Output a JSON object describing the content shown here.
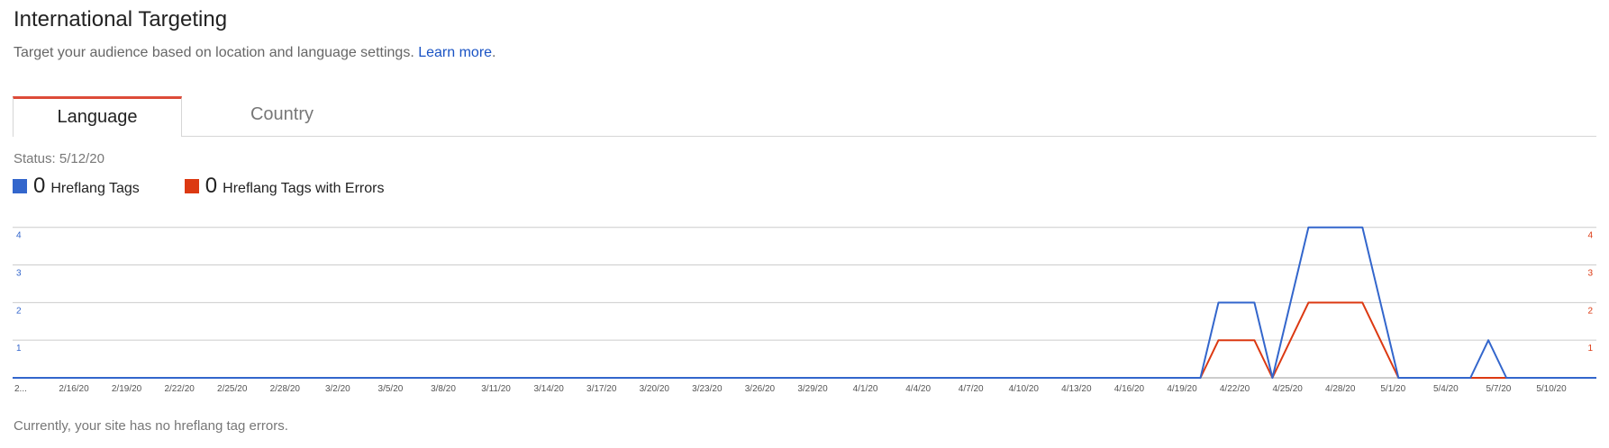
{
  "page": {
    "title": "International Targeting",
    "subtitle": "Target your audience based on location and language settings.",
    "learn_more": "Learn more",
    "learn_more_suffix": "."
  },
  "tabs": [
    {
      "label": "Language",
      "selected": true
    },
    {
      "label": "Country",
      "selected": false
    }
  ],
  "status": "Status: 5/12/20",
  "legend": [
    {
      "count": "0",
      "label": "Hreflang Tags",
      "color": "#3366cc"
    },
    {
      "count": "0",
      "label": "Hreflang Tags with Errors",
      "color": "#dc3912"
    }
  ],
  "footer_note": "Currently, your site has no hreflang tag errors.",
  "chart_data": {
    "type": "line",
    "title": "",
    "xlabel": "",
    "ylabel": "",
    "ylim": [
      0,
      4.4
    ],
    "y_ticks": [
      1,
      2,
      3,
      4
    ],
    "grid": true,
    "x_tick_labels": [
      "2...",
      "2/16/20",
      "2/19/20",
      "2/22/20",
      "2/25/20",
      "2/28/20",
      "3/2/20",
      "3/5/20",
      "3/8/20",
      "3/11/20",
      "3/14/20",
      "3/17/20",
      "3/20/20",
      "3/23/20",
      "3/26/20",
      "3/29/20",
      "4/1/20",
      "4/4/20",
      "4/7/20",
      "4/10/20",
      "4/13/20",
      "4/16/20",
      "4/19/20",
      "4/22/20",
      "4/25/20",
      "4/28/20",
      "5/1/20",
      "5/4/20",
      "5/7/20",
      "5/10/20"
    ],
    "x_first_date": "2020-02-14",
    "x_last_date": "2020-05-12",
    "series": [
      {
        "name": "Hreflang Tags",
        "color": "#3366cc",
        "axis": "left",
        "points": [
          {
            "x": "2020-02-14",
            "y": 0
          },
          {
            "x": "2020-04-20",
            "y": 0
          },
          {
            "x": "2020-04-21",
            "y": 2
          },
          {
            "x": "2020-04-23",
            "y": 2
          },
          {
            "x": "2020-04-24",
            "y": 0
          },
          {
            "x": "2020-04-26",
            "y": 4
          },
          {
            "x": "2020-04-29",
            "y": 4
          },
          {
            "x": "2020-05-01",
            "y": 0
          },
          {
            "x": "2020-05-05",
            "y": 0
          },
          {
            "x": "2020-05-06",
            "y": 1
          },
          {
            "x": "2020-05-07",
            "y": 0
          },
          {
            "x": "2020-05-12",
            "y": 0
          }
        ]
      },
      {
        "name": "Hreflang Tags with Errors",
        "color": "#dc3912",
        "axis": "right",
        "points": [
          {
            "x": "2020-02-14",
            "y": 0
          },
          {
            "x": "2020-04-20",
            "y": 0
          },
          {
            "x": "2020-04-21",
            "y": 1
          },
          {
            "x": "2020-04-23",
            "y": 1
          },
          {
            "x": "2020-04-24",
            "y": 0
          },
          {
            "x": "2020-04-26",
            "y": 2
          },
          {
            "x": "2020-04-29",
            "y": 2
          },
          {
            "x": "2020-05-01",
            "y": 0
          },
          {
            "x": "2020-05-12",
            "y": 0
          }
        ]
      }
    ]
  }
}
